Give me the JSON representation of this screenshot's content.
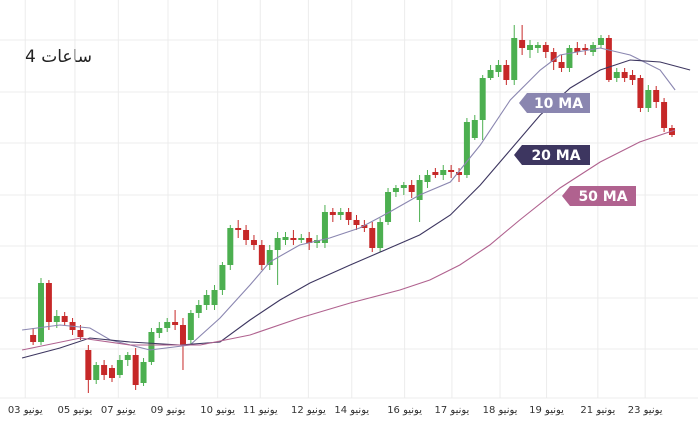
{
  "chart_data": {
    "type": "candlestick",
    "title": "4 ساعات",
    "up_color": "#4caf50",
    "down_color": "#c62828",
    "xlim": [
      -4.2,
      84.3
    ],
    "ylim": [
      0,
      439
    ],
    "xticks": [
      {
        "value": -1,
        "label": "03 يونيو"
      },
      {
        "value": 5.3,
        "label": "05 يونيو"
      },
      {
        "value": 10.8,
        "label": "07 يونيو"
      },
      {
        "value": 17.1,
        "label": "09 يونيو"
      },
      {
        "value": 23.4,
        "label": "10 يونيو"
      },
      {
        "value": 28.8,
        "label": "11 يونيو"
      },
      {
        "value": 34.9,
        "label": "12 يونيو"
      },
      {
        "value": 40.4,
        "label": "14 يونيو"
      },
      {
        "value": 47.1,
        "label": "16 يونيو"
      },
      {
        "value": 53.1,
        "label": "17 يونيو"
      },
      {
        "value": 59.2,
        "label": "18 يونيو"
      },
      {
        "value": 65.1,
        "label": "19 يونيو"
      },
      {
        "value": 71.6,
        "label": "21 يونيو"
      },
      {
        "value": 77.6,
        "label": "23 يونيو"
      }
    ],
    "candles": {
      "open": [
        104,
        97,
        156,
        117,
        123,
        117,
        109,
        89,
        59,
        74,
        71,
        64,
        79,
        84,
        56,
        77,
        106,
        111,
        117,
        114,
        99,
        126,
        134,
        134,
        149,
        174,
        211,
        209,
        199,
        194,
        174,
        189,
        199,
        201,
        199,
        201,
        196,
        196,
        227,
        224,
        227,
        219,
        214,
        211,
        191,
        217,
        247,
        251,
        254,
        239,
        257,
        267,
        264,
        269,
        267,
        264,
        301,
        319,
        361,
        367,
        374,
        359,
        399,
        389,
        391,
        394,
        387,
        377,
        371,
        391,
        391,
        387,
        394,
        401,
        361,
        367,
        364,
        361,
        331,
        349,
        337,
        311
      ],
      "high": [
        111,
        161,
        159,
        129,
        127,
        121,
        114,
        94,
        77,
        79,
        74,
        84,
        87,
        91,
        81,
        111,
        117,
        121,
        129,
        121,
        129,
        139,
        149,
        154,
        177,
        214,
        219,
        214,
        204,
        199,
        194,
        207,
        207,
        209,
        205,
        207,
        204,
        234,
        231,
        231,
        231,
        224,
        219,
        217,
        221,
        251,
        254,
        257,
        259,
        264,
        269,
        271,
        274,
        274,
        271,
        321,
        324,
        364,
        374,
        379,
        379,
        414,
        414,
        399,
        397,
        397,
        391,
        384,
        394,
        397,
        395,
        397,
        404,
        404,
        371,
        371,
        369,
        364,
        354,
        353,
        341,
        314
      ],
      "low": [
        94,
        94,
        109,
        111,
        114,
        104,
        99,
        46,
        55,
        59,
        57,
        61,
        73,
        49,
        53,
        74,
        101,
        107,
        109,
        69,
        94,
        121,
        129,
        129,
        144,
        169,
        201,
        194,
        189,
        169,
        169,
        154,
        194,
        194,
        196,
        189,
        191,
        191,
        217,
        219,
        214,
        209,
        207,
        187,
        187,
        214,
        242,
        244,
        241,
        217,
        251,
        261,
        259,
        261,
        257,
        261,
        299,
        299,
        359,
        362,
        354,
        354,
        384,
        381,
        386,
        381,
        369,
        367,
        367,
        384,
        384,
        383,
        391,
        357,
        357,
        357,
        354,
        327,
        327,
        331,
        307,
        302
      ],
      "close": [
        97,
        156,
        117,
        123,
        117,
        109,
        102,
        59,
        74,
        64,
        61,
        79,
        84,
        54,
        77,
        107,
        111,
        117,
        114,
        94,
        126,
        134,
        144,
        149,
        174,
        211,
        209,
        199,
        194,
        174,
        189,
        201,
        202,
        199,
        201,
        196,
        199,
        227,
        224,
        227,
        219,
        214,
        211,
        191,
        217,
        247,
        251,
        254,
        247,
        259,
        264,
        264,
        269,
        267,
        264,
        317,
        319,
        361,
        369,
        374,
        359,
        401,
        391,
        394,
        394,
        387,
        377,
        371,
        391,
        387,
        389,
        394,
        401,
        359,
        367,
        361,
        359,
        331,
        349,
        337,
        311,
        304
      ]
    },
    "series": [
      {
        "name": "10 MA",
        "color": "#8a86b0",
        "x": [
          -1.4,
          3.4,
          7.2,
          9.8,
          14.8,
          19.9,
          23.7,
          27.5,
          30.0,
          33.8,
          37.6,
          41.4,
          45.2,
          49.0,
          52.9,
          56.7,
          60.5,
          64.3,
          66.8,
          71.9,
          75.7,
          79.5,
          81.4
        ],
        "values": [
          109,
          114,
          111,
          99,
          89,
          94,
          121,
          154,
          177,
          194,
          201,
          211,
          227,
          244,
          257,
          294,
          339,
          369,
          384,
          391,
          384,
          369,
          349
        ]
      },
      {
        "name": "20 MA",
        "color": "#3d3660",
        "x": [
          -1.4,
          3.4,
          7.2,
          12.3,
          18.6,
          23.7,
          27.5,
          31.3,
          35.1,
          40.2,
          45.2,
          49.0,
          52.9,
          56.7,
          60.5,
          64.3,
          68.1,
          71.9,
          75.7,
          79.5,
          83.3
        ],
        "values": [
          81,
          91,
          101,
          97,
          94,
          97,
          119,
          139,
          156,
          174,
          191,
          204,
          224,
          254,
          289,
          324,
          351,
          369,
          379,
          377,
          369
        ]
      },
      {
        "name": "50 MA",
        "color": "#b0628f",
        "x": [
          -1.4,
          6.0,
          12.3,
          21.2,
          27.5,
          33.8,
          40.2,
          46.5,
          50.3,
          54.1,
          57.9,
          61.7,
          66.8,
          71.9,
          76.9,
          81.4
        ],
        "values": [
          89,
          101,
          94,
          94,
          104,
          121,
          136,
          149,
          159,
          174,
          194,
          219,
          251,
          277,
          297,
          309
        ]
      }
    ]
  }
}
